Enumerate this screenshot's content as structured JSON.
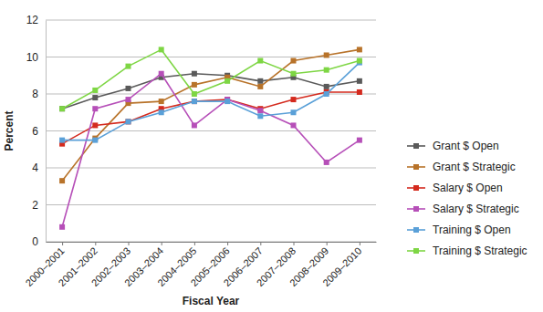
{
  "chart_data": {
    "type": "line",
    "x_label": "Fiscal Year",
    "y_label": "Percent",
    "categories": [
      "2000–2001",
      "2001–2002",
      "2002–2003",
      "2003–2004",
      "2004–2005",
      "2005–2006",
      "2006–2007",
      "2007–2008",
      "2008–2009",
      "2009–2010"
    ],
    "series": [
      {
        "name": "Grant $ Open",
        "color": "#5a5a5a",
        "values": [
          7.2,
          7.8,
          8.3,
          8.9,
          9.1,
          9.0,
          8.7,
          8.9,
          8.4,
          8.7
        ]
      },
      {
        "name": "Grant $ Strategic",
        "color": "#b8732a",
        "values": [
          3.3,
          5.6,
          7.5,
          7.6,
          8.5,
          8.9,
          8.4,
          9.8,
          10.1,
          10.4
        ]
      },
      {
        "name": "Salary $ Open",
        "color": "#d42a1e",
        "values": [
          5.3,
          6.3,
          6.5,
          7.2,
          7.6,
          7.7,
          7.2,
          7.7,
          8.1,
          8.1
        ]
      },
      {
        "name": "Salary $ Strategic",
        "color": "#b64fb8",
        "values": [
          0.8,
          7.2,
          7.7,
          9.1,
          6.3,
          7.7,
          7.1,
          6.3,
          4.3,
          5.5
        ]
      },
      {
        "name": "Training $ Open",
        "color": "#5aa0d8",
        "values": [
          5.5,
          5.5,
          6.5,
          7.0,
          7.6,
          7.6,
          6.8,
          7.0,
          8.0,
          9.7
        ]
      },
      {
        "name": "Training $ Strategic",
        "color": "#7ed644",
        "values": [
          7.2,
          8.2,
          9.5,
          10.4,
          8.0,
          8.7,
          9.8,
          9.1,
          9.3,
          9.8
        ]
      }
    ],
    "ylim": [
      0,
      12
    ],
    "yticks": [
      0,
      2,
      4,
      6,
      8,
      10,
      12
    ],
    "grid": true,
    "legend": "right",
    "marker": "square",
    "line_style": "solid"
  }
}
